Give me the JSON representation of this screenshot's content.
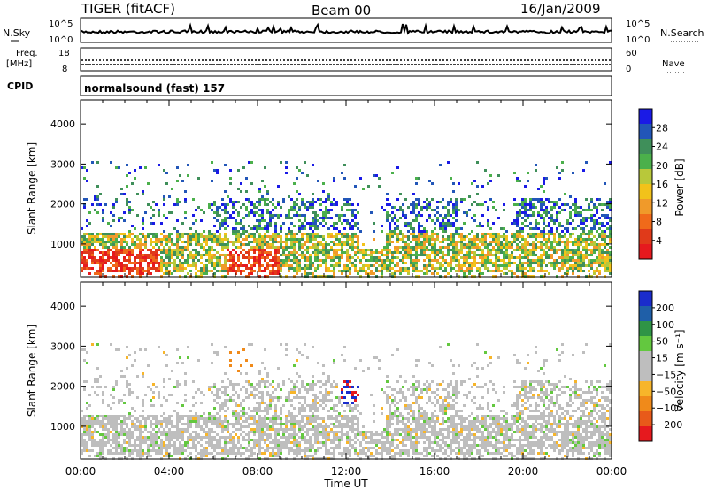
{
  "header": {
    "radar": "TIGER (fitACF)",
    "beam": "Beam 00",
    "date": "16/Jan/2009"
  },
  "strips": {
    "nsky_label": "N.Sky",
    "nsearch_label": "N.Search",
    "noise_ticks_left": [
      "10^5",
      "10^0"
    ],
    "noise_ticks_right": [
      "10^5",
      "10^0"
    ],
    "freq_label": "Freq.",
    "freq_unit": "[MHz]",
    "freq_ticks": [
      "18",
      "8"
    ],
    "nave_label": "Nave",
    "nave_ticks": [
      "60",
      "0"
    ],
    "cpid_label": "CPID",
    "cpid_value": "normalsound (fast) 157"
  },
  "colors": {
    "power_scale": [
      "#1a1ae6",
      "#2256b8",
      "#3f8f5a",
      "#4bb04b",
      "#b8c83a",
      "#f2c21a",
      "#f09a2a",
      "#f06a1a",
      "#e03a1a",
      "#e6191e"
    ],
    "velocity_scale": [
      "#1a2ccc",
      "#1f5fa8",
      "#2f9446",
      "#63c83f",
      "#bebebe",
      "#bebebe",
      "#f7b52a",
      "#f08a1a",
      "#e85a1a",
      "#e6191e"
    ]
  },
  "chart_data": [
    {
      "type": "heatmap",
      "title": "",
      "ylabel": "Slant Range [km]",
      "xlabel": "",
      "ylim": [
        180,
        4600
      ],
      "y_ticks": [
        "4000",
        "3000",
        "2000",
        "1000"
      ],
      "x_ticks": [
        "00:00",
        "04:00",
        "08:00",
        "12:00",
        "16:00",
        "20:00",
        "00:00"
      ],
      "colorbar": {
        "label": "Power [dB]",
        "ticks": [
          "28",
          "24",
          "20",
          "16",
          "12",
          "8",
          "4"
        ],
        "range": [
          0,
          30
        ]
      },
      "grid": false
    },
    {
      "type": "heatmap",
      "title": "",
      "ylabel": "Slant Range [km]",
      "xlabel": "Time UT",
      "ylim": [
        180,
        4600
      ],
      "y_ticks": [
        "4000",
        "3000",
        "2000",
        "1000"
      ],
      "x_ticks": [
        "00:00",
        "04:00",
        "08:00",
        "12:00",
        "16:00",
        "20:00",
        "00:00"
      ],
      "colorbar": {
        "label": "Velocity [m s⁻¹]",
        "ticks": [
          "200",
          "100",
          "50",
          "15",
          "−15",
          "−50",
          "−100",
          "−200"
        ],
        "range": [
          -250,
          250
        ]
      },
      "grid": false
    }
  ]
}
